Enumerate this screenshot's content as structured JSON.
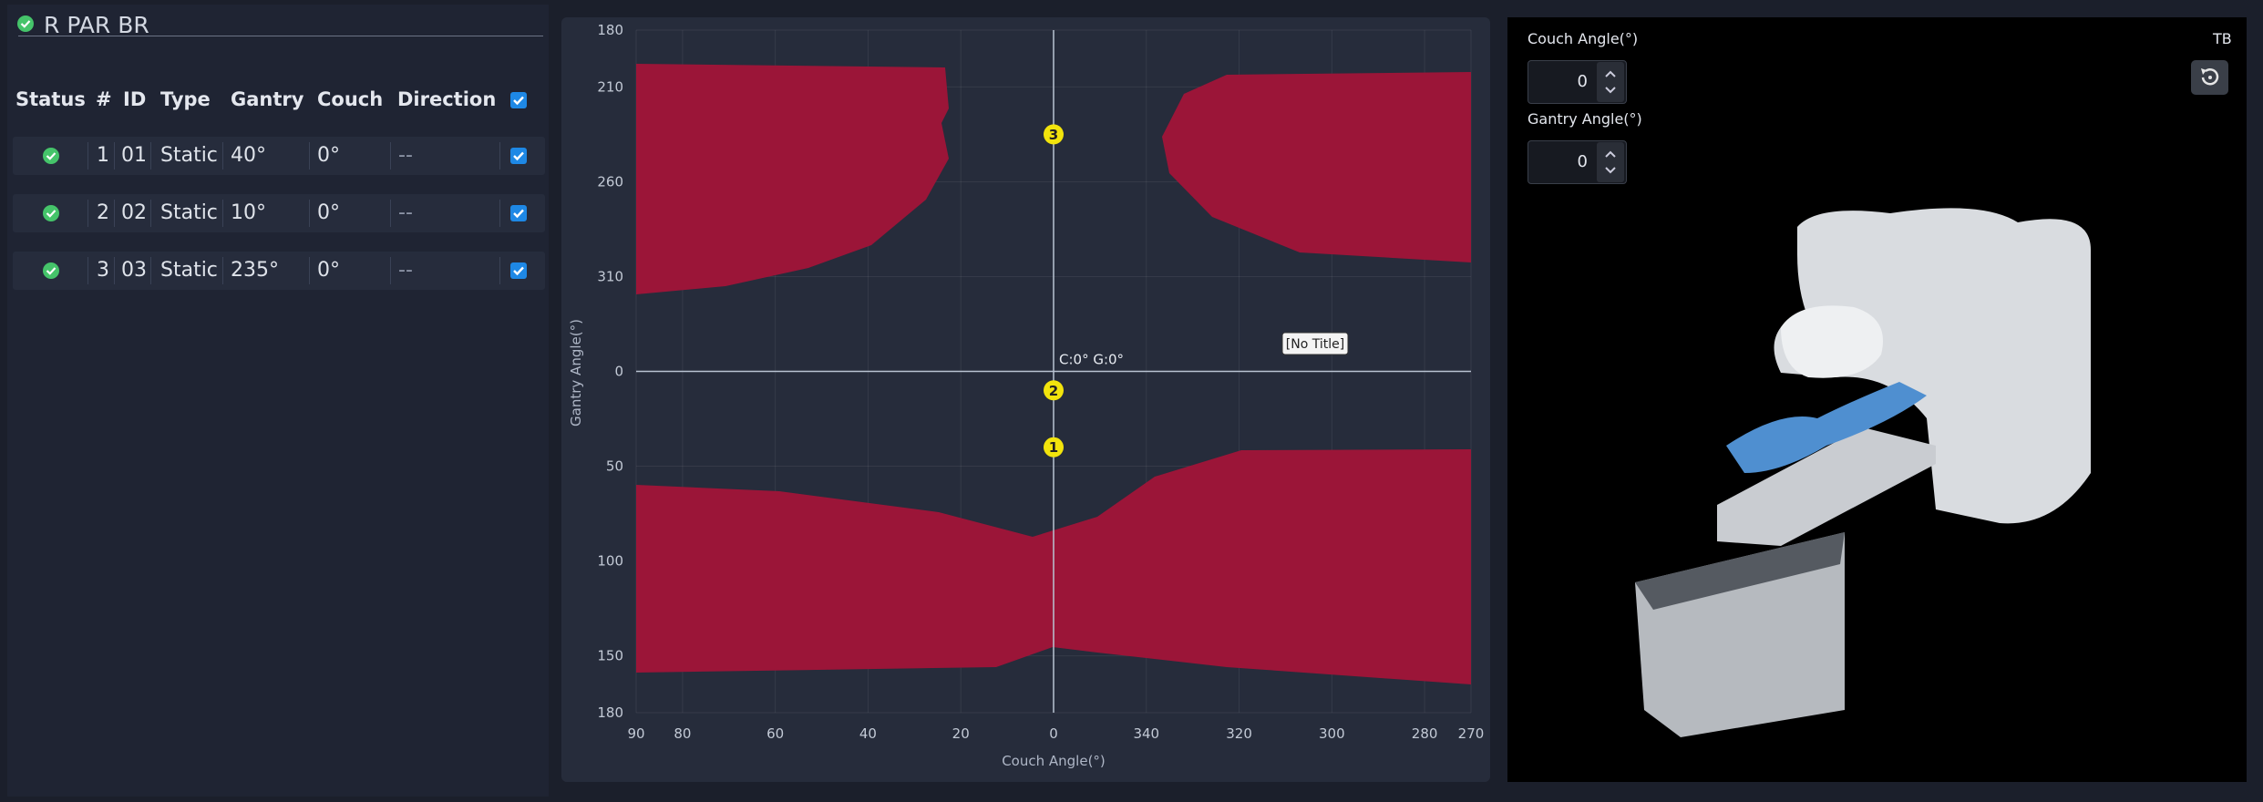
{
  "plan": {
    "title": "R PAR BR",
    "columns": [
      "Status",
      "#",
      "ID",
      "Type",
      "Gantry",
      "Couch",
      "Direction"
    ],
    "all_selected": true,
    "rows": [
      {
        "cells": [
          "1",
          "01",
          "Static",
          "40°",
          "0°",
          "--"
        ],
        "selected": true
      },
      {
        "cells": [
          "2",
          "02",
          "Static",
          "10°",
          "0°",
          "--"
        ],
        "selected": true
      },
      {
        "cells": [
          "3",
          "03",
          "Static",
          "235°",
          "0°",
          "--"
        ],
        "selected": true
      }
    ]
  },
  "chart_data": {
    "type": "collision_map",
    "xlabel": "Couch Angle(°)",
    "ylabel": "Gantry Angle(°)",
    "xlim": [
      90,
      -90
    ],
    "ylim": [
      540,
      180
    ],
    "xticks": [
      90,
      80,
      60,
      40,
      20,
      0,
      {
        "value": -20,
        "label": "340"
      },
      {
        "value": -40,
        "label": "320"
      },
      {
        "value": -60,
        "label": "300"
      },
      {
        "value": -80,
        "label": "280"
      },
      {
        "value": -90,
        "label": "270"
      }
    ],
    "yticks": [
      180,
      210,
      260,
      310,
      {
        "value": 360,
        "label": "0"
      },
      {
        "value": 410,
        "label": "50"
      },
      {
        "value": 460,
        "label": "100"
      },
      {
        "value": 510,
        "label": "150"
      },
      {
        "value": 540,
        "label": "180"
      }
    ],
    "grid": true,
    "collision_color": "#9b1538",
    "marker_color": "#f2e40c",
    "points": [
      {
        "label": "1",
        "x": 0,
        "y": 400
      },
      {
        "label": "2",
        "x": 0,
        "y": 370
      },
      {
        "label": "3",
        "x": 0,
        "y": 235
      }
    ],
    "crosshair": {
      "x": 0,
      "y": 360,
      "label": "C:0° G:0°"
    },
    "annotation": "[No Title]"
  },
  "view3d": {
    "couch_label": "Couch Angle(°)",
    "couch_value": "0",
    "gantry_label": "Gantry Angle(°)",
    "gantry_value": "0",
    "mode": "TB"
  }
}
